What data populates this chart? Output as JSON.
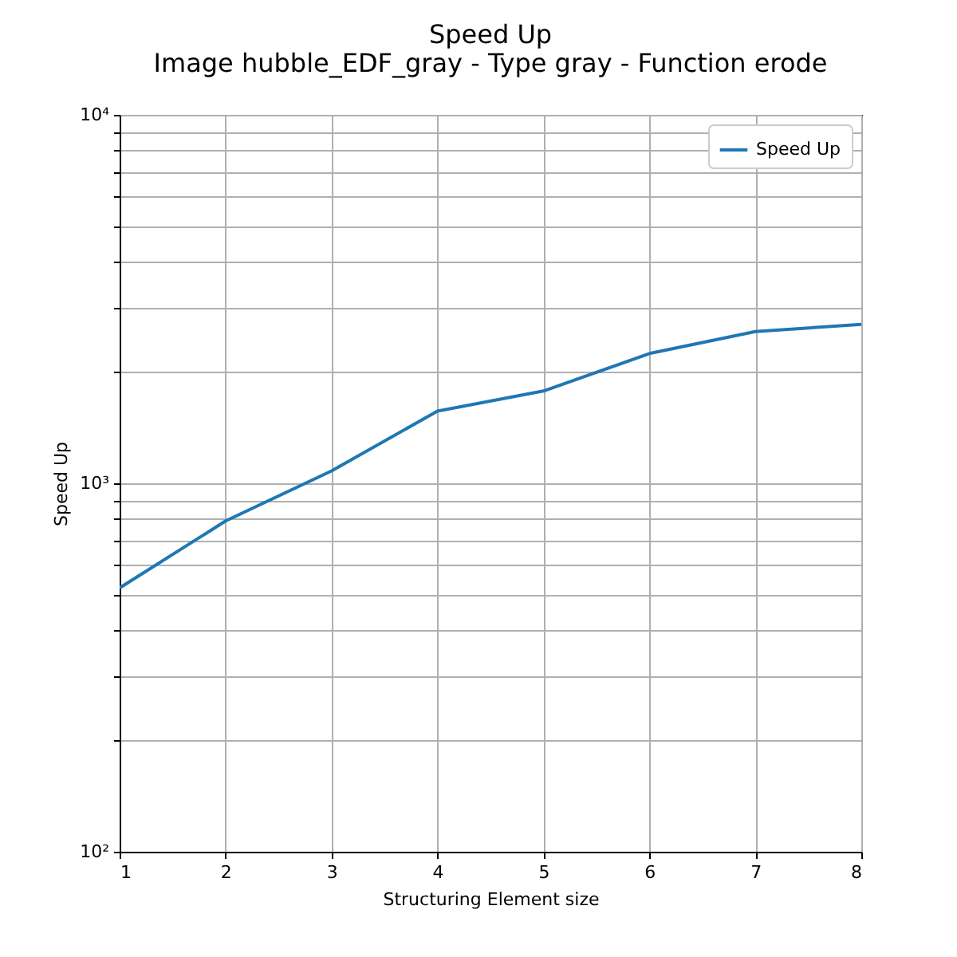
{
  "chart_data": {
    "type": "line",
    "title": "Speed Up",
    "subtitle": "Image hubble_EDF_gray - Type gray - Function erode",
    "xlabel": "Structuring Element size",
    "ylabel": "Speed Up",
    "x": [
      1,
      2,
      3,
      4,
      5,
      6,
      7,
      8
    ],
    "series": [
      {
        "name": "Speed Up",
        "color": "#1f77b4",
        "values": [
          520,
          790,
          1080,
          1570,
          1780,
          2250,
          2580,
          2700
        ]
      }
    ],
    "xlim": [
      1,
      8
    ],
    "xticks": [
      1,
      2,
      3,
      4,
      5,
      6,
      7,
      8
    ],
    "ylim": [
      100,
      10000
    ],
    "yticks": [
      {
        "value": 100,
        "label": "10²"
      },
      {
        "value": 200,
        "label": null
      },
      {
        "value": 300,
        "label": null
      },
      {
        "value": 400,
        "label": null
      },
      {
        "value": 500,
        "label": null
      },
      {
        "value": 600,
        "label": null
      },
      {
        "value": 700,
        "label": null
      },
      {
        "value": 800,
        "label": null
      },
      {
        "value": 900,
        "label": null
      },
      {
        "value": 1000,
        "label": "10³"
      },
      {
        "value": 2000,
        "label": null
      },
      {
        "value": 3000,
        "label": null
      },
      {
        "value": 4000,
        "label": null
      },
      {
        "value": 5000,
        "label": null
      },
      {
        "value": 6000,
        "label": null
      },
      {
        "value": 7000,
        "label": null
      },
      {
        "value": 8000,
        "label": null
      },
      {
        "value": 9000,
        "label": null
      },
      {
        "value": 10000,
        "label": "10⁴"
      }
    ],
    "log": true,
    "grid": true,
    "legend": "top right",
    "line_style": "solid"
  }
}
